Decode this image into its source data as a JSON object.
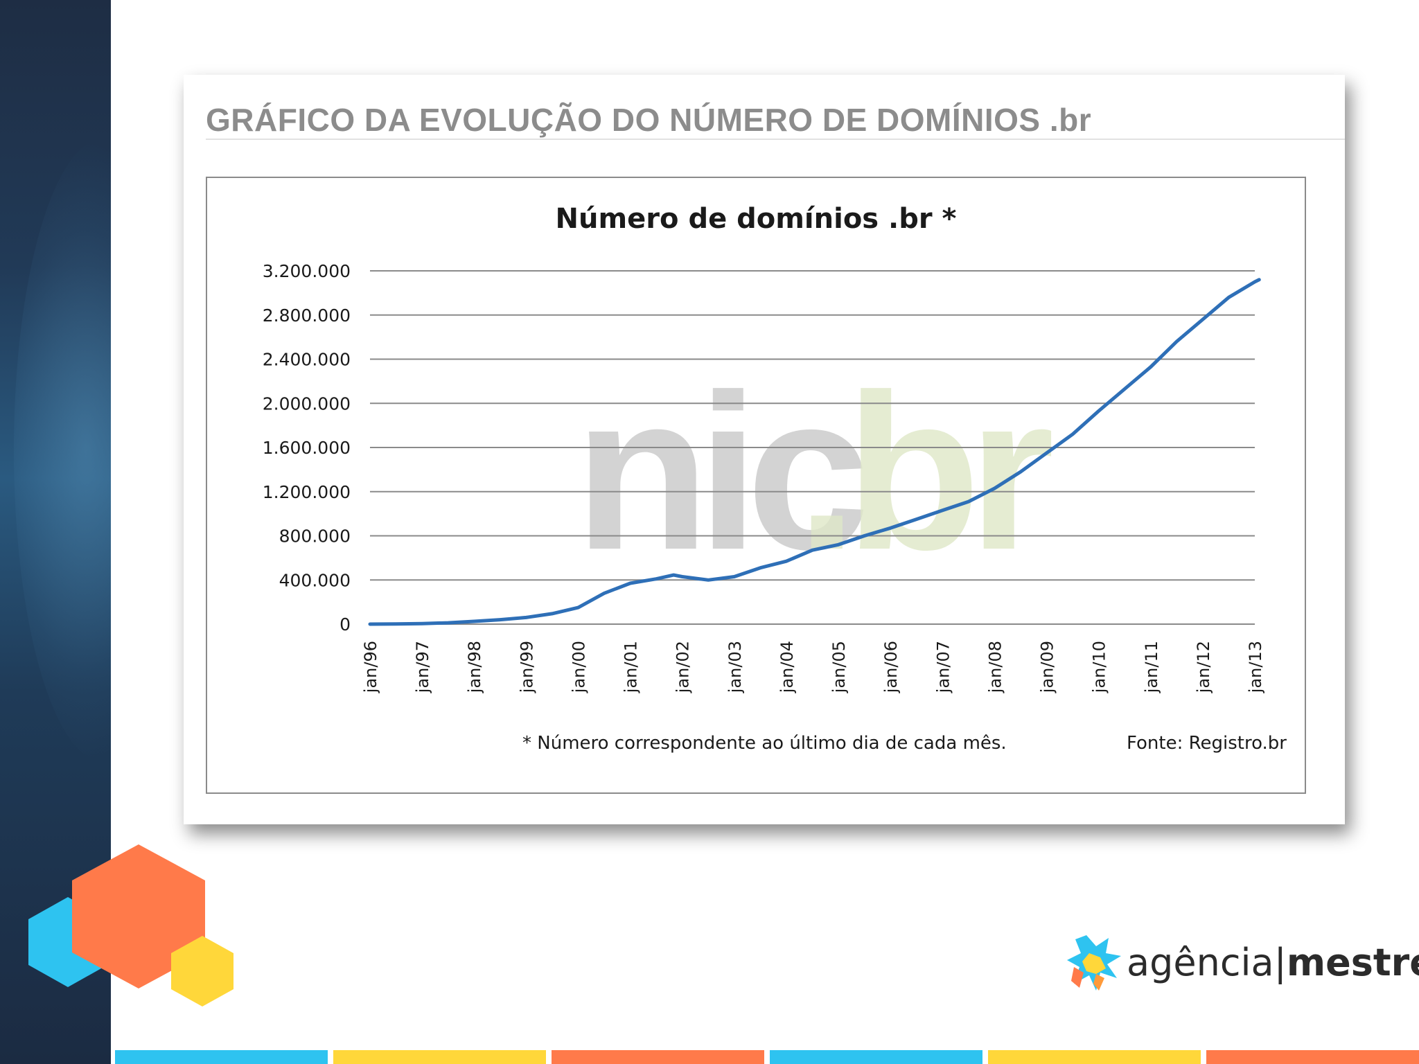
{
  "slide": {
    "title": "GRÁFICO DA EVOLUÇÃO DO NÚMERO DE DOMÍNIOS .br",
    "title_color": "#8c8c8c"
  },
  "brand": {
    "logo_light": "agência",
    "logo_separator": "|",
    "logo_bold": "mestre",
    "icon": "star-burst-icon"
  },
  "colors": {
    "left_strip": "#1e2d44",
    "hex_orange": "#ff7a4a",
    "hex_blue": "#2ec3f0",
    "hex_yellow": "#ffd73a",
    "bar_blue": "#2ec3f0",
    "bar_yellow": "#ffd73a",
    "bar_orange": "#ff7a4a",
    "line_series": "#2e6fb7"
  },
  "bottom_bars": [
    "#2ec3f0",
    "#ffd73a",
    "#ff7a4a",
    "#2ec3f0",
    "#ffd73a",
    "#ff7a4a"
  ],
  "chart_data": {
    "type": "line",
    "title": "Número de domínios  .br *",
    "watermark_left": "nic",
    "watermark_right": ".br",
    "footnote": "* Número correspondente ao último  dia de cada mês.",
    "source": "Fonte: Registro.br",
    "ylim": [
      0,
      3200000
    ],
    "yticks": [
      0,
      400000,
      800000,
      1200000,
      1600000,
      2000000,
      2400000,
      2800000,
      3200000
    ],
    "ytick_labels": [
      "0",
      "400.000",
      "800.000",
      "1.200.000",
      "1.600.000",
      "2.000.000",
      "2.400.000",
      "2.800.000",
      "3.200.000"
    ],
    "x_labels": [
      "jan/96",
      "jan/97",
      "jan/98",
      "jan/99",
      "jan/00",
      "jan/01",
      "jan/02",
      "jan/03",
      "jan/04",
      "jan/05",
      "jan/06",
      "jan/07",
      "jan/08",
      "jan/09",
      "jan/10",
      "jan/11",
      "jan/12",
      "jan/13"
    ],
    "x_range": [
      "jan/96",
      "jan/13"
    ],
    "grid": true,
    "series": [
      {
        "points": [
          [
            "jan/96",
            0
          ],
          [
            "jul/96",
            2000
          ],
          [
            "jan/97",
            5000
          ],
          [
            "jul/97",
            12000
          ],
          [
            "jan/98",
            25000
          ],
          [
            "jul/98",
            40000
          ],
          [
            "jan/99",
            60000
          ],
          [
            "jul/99",
            95000
          ],
          [
            "jan/00",
            150000
          ],
          [
            "jul/00",
            280000
          ],
          [
            "jan/01",
            370000
          ],
          [
            "jul/01",
            410000
          ],
          [
            "nov/01",
            445000
          ],
          [
            "jan/02",
            430000
          ],
          [
            "jul/02",
            400000
          ],
          [
            "jan/03",
            430000
          ],
          [
            "jul/03",
            510000
          ],
          [
            "jan/04",
            570000
          ],
          [
            "jul/04",
            670000
          ],
          [
            "jan/05",
            720000
          ],
          [
            "jul/05",
            800000
          ],
          [
            "jan/06",
            870000
          ],
          [
            "jul/06",
            950000
          ],
          [
            "jan/07",
            1030000
          ],
          [
            "jul/07",
            1110000
          ],
          [
            "jan/08",
            1230000
          ],
          [
            "jul/08",
            1380000
          ],
          [
            "jan/09",
            1550000
          ],
          [
            "jul/09",
            1720000
          ],
          [
            "jan/10",
            1930000
          ],
          [
            "jul/10",
            2130000
          ],
          [
            "jan/11",
            2330000
          ],
          [
            "jul/11",
            2560000
          ],
          [
            "jan/12",
            2760000
          ],
          [
            "jul/12",
            2960000
          ],
          [
            "jan/13",
            3100000
          ],
          [
            "feb/13",
            3120000
          ]
        ]
      }
    ]
  }
}
